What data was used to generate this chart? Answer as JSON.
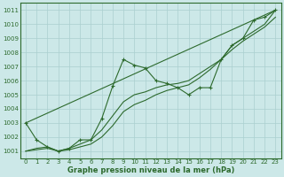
{
  "xlabel": "Graphe pression niveau de la mer (hPa)",
  "bg_color": "#cce8e8",
  "grid_color": "#aacfcf",
  "line_color": "#2d6a2d",
  "ylim": [
    1000.5,
    1011.5
  ],
  "xlim": [
    -0.5,
    23.5
  ],
  "yticks": [
    1001,
    1002,
    1003,
    1004,
    1005,
    1006,
    1007,
    1008,
    1009,
    1010,
    1011
  ],
  "xticks": [
    0,
    1,
    2,
    3,
    4,
    5,
    6,
    7,
    8,
    9,
    10,
    11,
    12,
    13,
    14,
    15,
    16,
    17,
    18,
    19,
    20,
    21,
    22,
    23
  ],
  "series_main": {
    "x": [
      0,
      1,
      2,
      3,
      4,
      5,
      6,
      7,
      8,
      9,
      10,
      11,
      12,
      13,
      14,
      15,
      16,
      17,
      18,
      19,
      20,
      21,
      22,
      23
    ],
    "y": [
      1003.0,
      1001.8,
      1001.3,
      1001.0,
      1001.2,
      1001.8,
      1001.8,
      1003.3,
      1005.6,
      1007.5,
      1007.1,
      1006.9,
      1006.0,
      1005.8,
      1005.5,
      1005.0,
      1005.5,
      1005.5,
      1007.5,
      1008.5,
      1009.0,
      1010.3,
      1010.5,
      1011.0
    ]
  },
  "series_line1": {
    "x": [
      0,
      23
    ],
    "y": [
      1003.0,
      1011.0
    ]
  },
  "series_line2": {
    "x": [
      0,
      1,
      2,
      3,
      4,
      5,
      6,
      7,
      8,
      9,
      10,
      11,
      12,
      13,
      14,
      15,
      16,
      17,
      18,
      19,
      20,
      21,
      22,
      23
    ],
    "y": [
      1001.0,
      1001.2,
      1001.3,
      1001.0,
      1001.2,
      1001.5,
      1001.8,
      1002.5,
      1003.5,
      1004.5,
      1005.0,
      1005.2,
      1005.5,
      1005.7,
      1005.8,
      1006.0,
      1006.5,
      1007.0,
      1007.5,
      1008.5,
      1009.0,
      1009.5,
      1010.0,
      1011.0
    ]
  },
  "series_line3": {
    "x": [
      0,
      1,
      2,
      3,
      4,
      5,
      6,
      7,
      8,
      9,
      10,
      11,
      12,
      13,
      14,
      15,
      16,
      17,
      18,
      19,
      20,
      21,
      22,
      23
    ],
    "y": [
      1001.0,
      1001.1,
      1001.2,
      1001.0,
      1001.1,
      1001.3,
      1001.5,
      1002.0,
      1002.8,
      1003.8,
      1004.3,
      1004.6,
      1005.0,
      1005.3,
      1005.5,
      1005.7,
      1006.2,
      1006.8,
      1007.5,
      1008.2,
      1008.8,
      1009.3,
      1009.8,
      1010.5
    ]
  }
}
